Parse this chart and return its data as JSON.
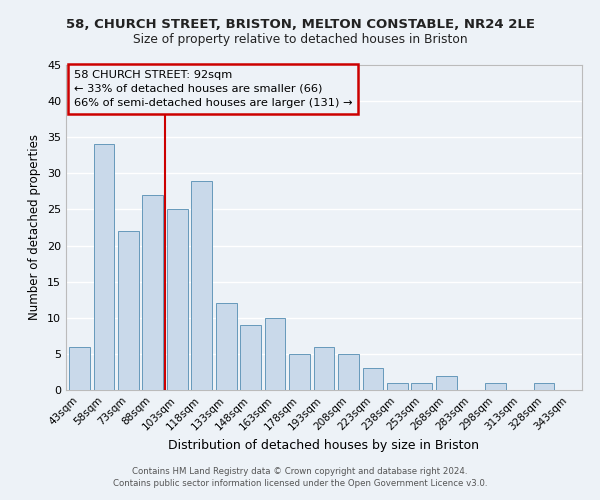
{
  "title1": "58, CHURCH STREET, BRISTON, MELTON CONSTABLE, NR24 2LE",
  "title2": "Size of property relative to detached houses in Briston",
  "xlabel": "Distribution of detached houses by size in Briston",
  "ylabel": "Number of detached properties",
  "bar_labels": [
    "43sqm",
    "58sqm",
    "73sqm",
    "88sqm",
    "103sqm",
    "118sqm",
    "133sqm",
    "148sqm",
    "163sqm",
    "178sqm",
    "193sqm",
    "208sqm",
    "223sqm",
    "238sqm",
    "253sqm",
    "268sqm",
    "283sqm",
    "298sqm",
    "313sqm",
    "328sqm",
    "343sqm"
  ],
  "bar_values": [
    6,
    34,
    22,
    27,
    25,
    29,
    12,
    9,
    10,
    5,
    6,
    5,
    3,
    1,
    1,
    2,
    0,
    1,
    0,
    1,
    0
  ],
  "bar_color": "#c9d9ea",
  "bar_edge_color": "#6699bb",
  "vline_x": 3.5,
  "vline_color": "#cc0000",
  "annotation_title": "58 CHURCH STREET: 92sqm",
  "annotation_line2": "← 33% of detached houses are smaller (66)",
  "annotation_line3": "66% of semi-detached houses are larger (131) →",
  "annotation_box_color": "#cc0000",
  "ylim": [
    0,
    45
  ],
  "yticks": [
    0,
    5,
    10,
    15,
    20,
    25,
    30,
    35,
    40,
    45
  ],
  "footer1": "Contains HM Land Registry data © Crown copyright and database right 2024.",
  "footer2": "Contains public sector information licensed under the Open Government Licence v3.0.",
  "bg_color": "#edf2f7",
  "grid_color": "#ffffff"
}
